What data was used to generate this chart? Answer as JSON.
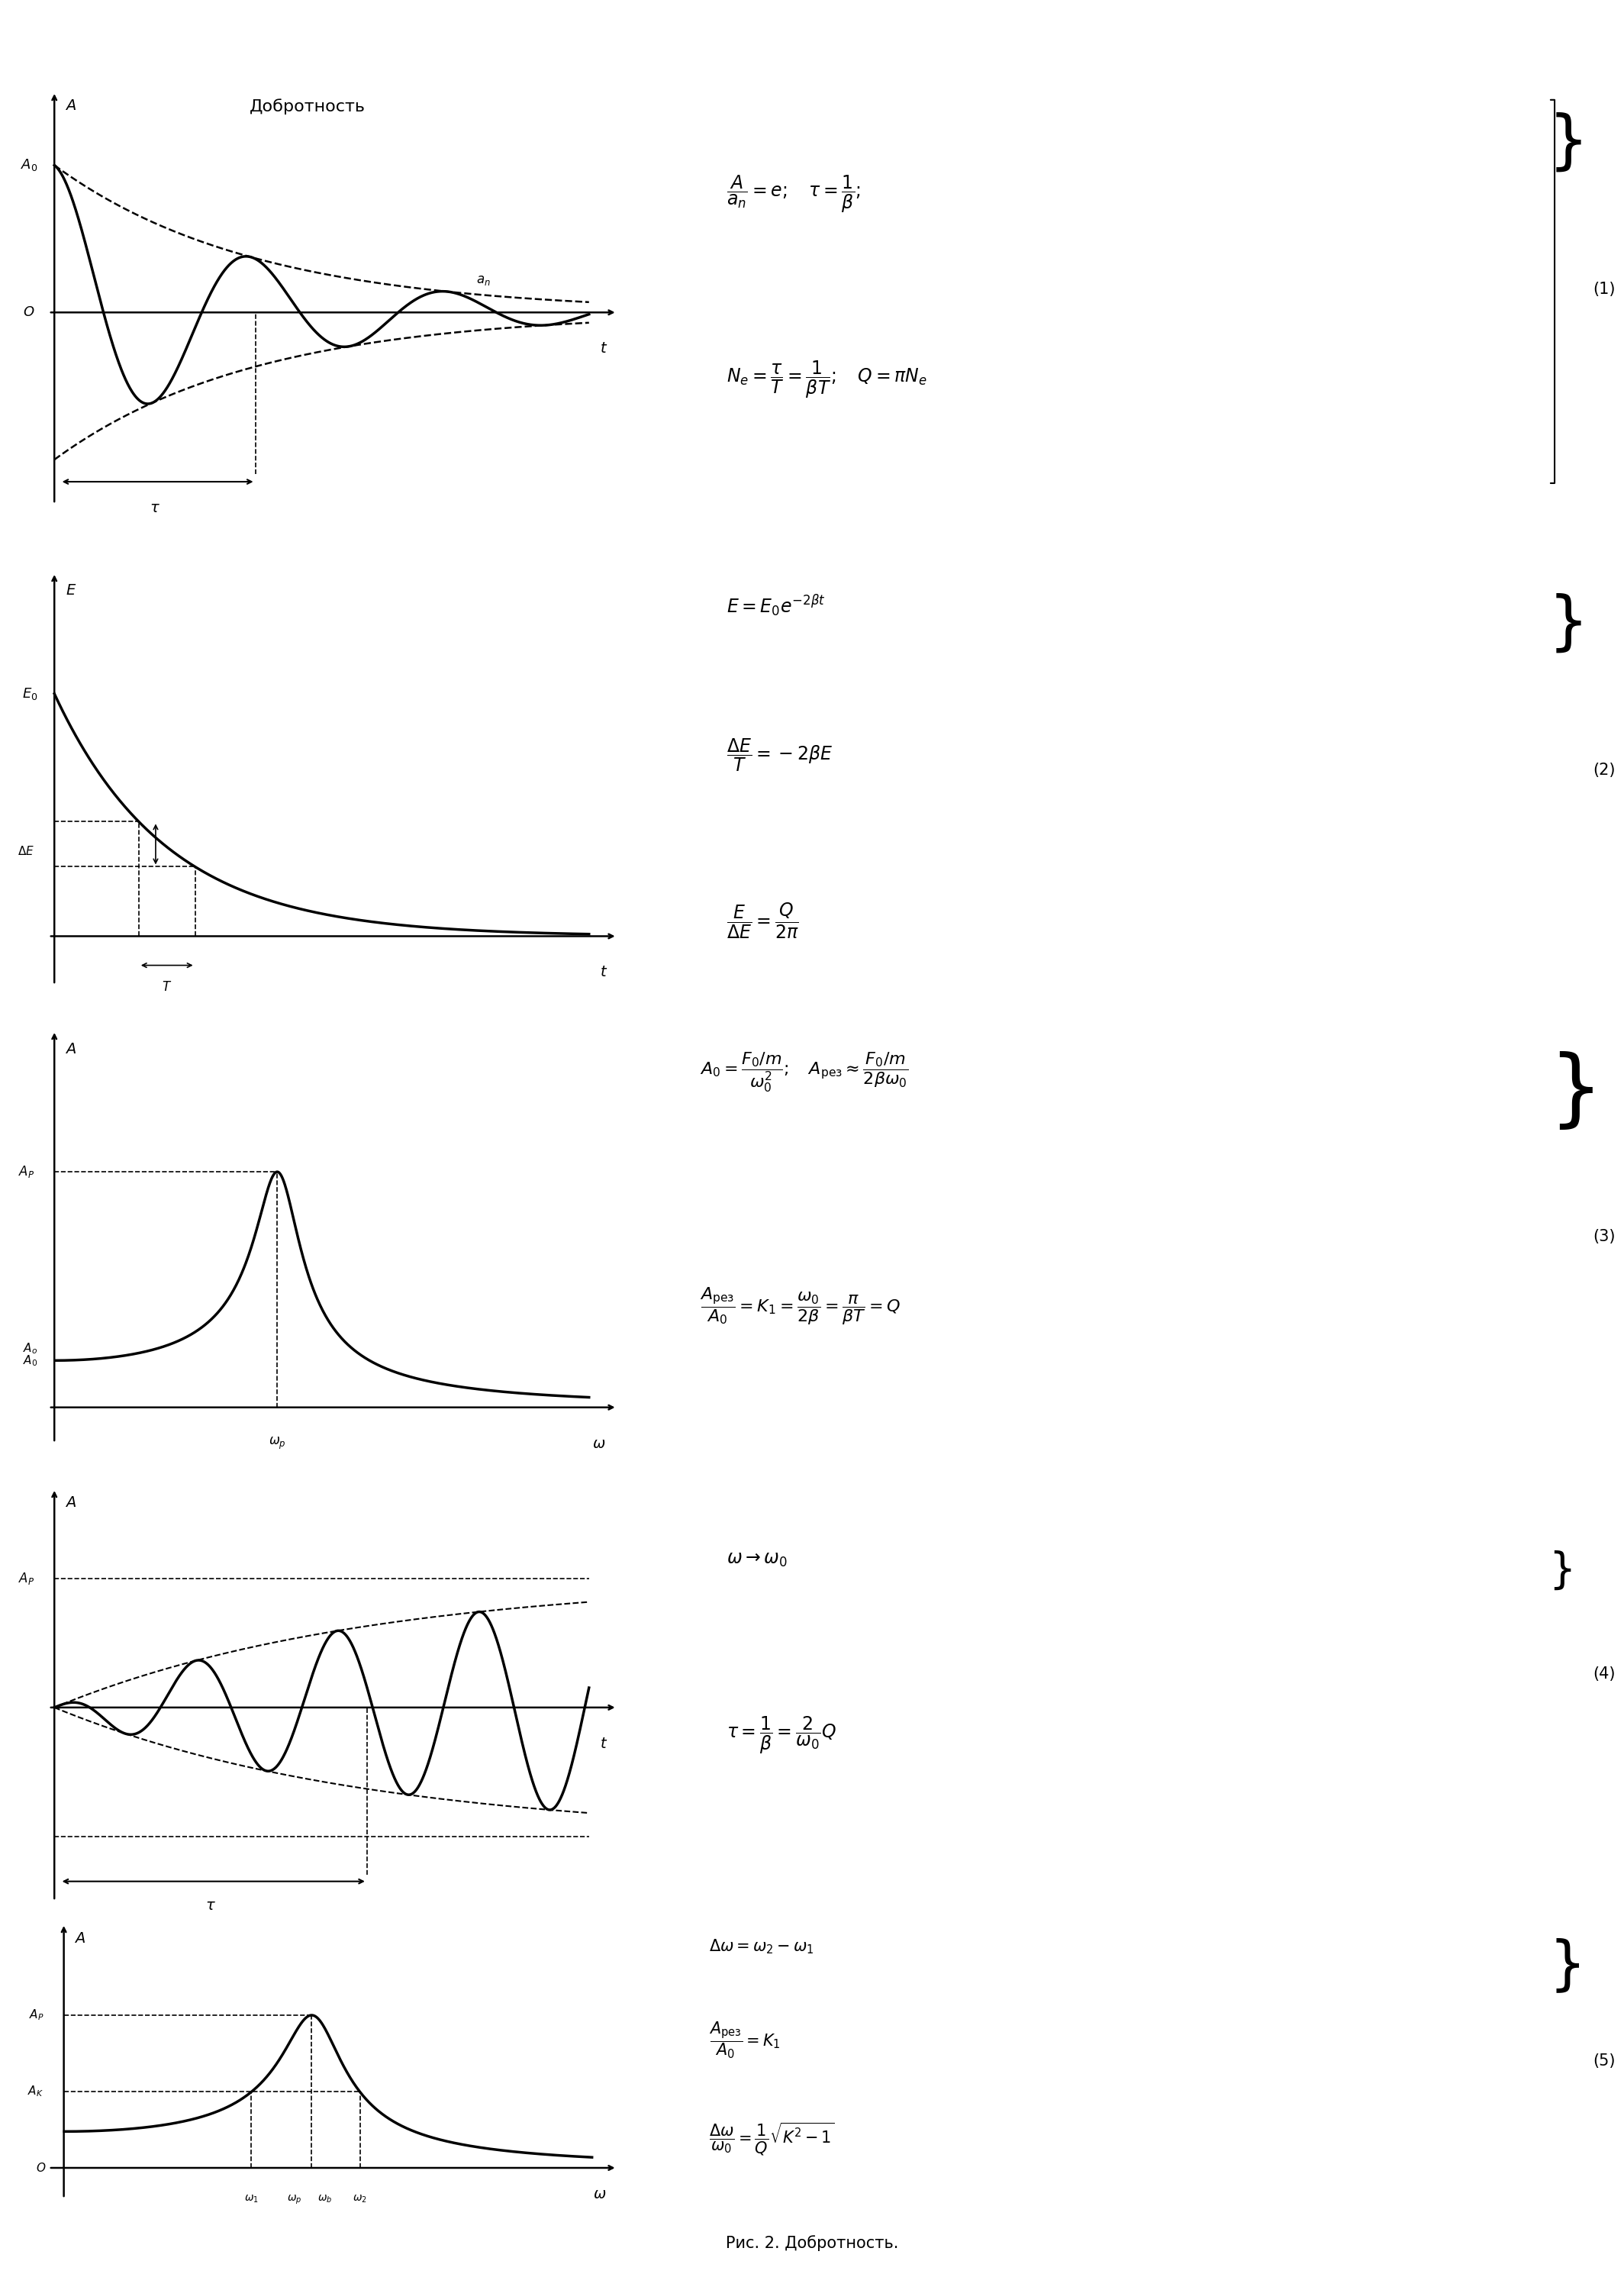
{
  "title": "Добротность",
  "fig_caption": "Рис. 2. Добротность.",
  "background_color": "#ffffff",
  "text_color": "#000000",
  "formula1_lines": [
    "\\frac{A}{a_n} = e;\\quad \\tau = \\frac{1}{\\beta};",
    "N_e = \\frac{\\tau}{T} = \\frac{1}{\\beta T};\\quad Q = \\pi N_e"
  ],
  "formula2_lines": [
    "E = E_0 e^{-2\\beta t}",
    "\\frac{\\Delta E}{T} = -2\\beta E",
    "\\frac{E}{\\Delta E} = \\frac{Q}{2\\pi}"
  ],
  "formula3_lines": [
    "A_0 = \\frac{F_0/m}{\\omega_0^2};\\quad A_{\\text{рез}} \\approx \\frac{F_0/m}{2\\beta\\omega_0}",
    "\\frac{A_{\\text{рез}}}{A_0} = K_1 = \\frac{\\omega_0}{2\\beta} = \\frac{\\pi}{\\beta T} = Q"
  ],
  "formula4_lines": [
    "\\omega \\to \\omega_0",
    "\\tau = \\frac{1}{\\beta} = \\frac{2}{\\omega_0}Q"
  ],
  "formula5_lines": [
    "\\Delta\\omega = \\omega_2 - \\omega_1",
    "\\frac{A_{\\text{рез}}}{A_0} = K_1",
    "\\frac{\\Delta\\omega}{\\omega_0} = \\frac{1}{Q}\\sqrt{K^2 - 1}"
  ]
}
